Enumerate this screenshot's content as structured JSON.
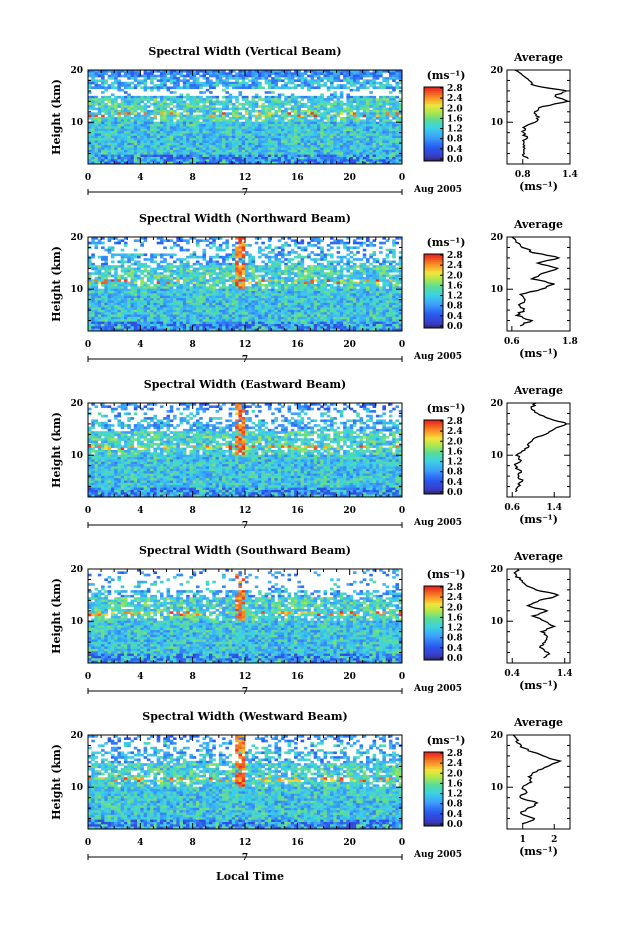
{
  "figure": {
    "xlabel_bottom": "Local Time",
    "colorbar_unit": "(ms⁻¹)",
    "avg_title": "Average",
    "avg_unit": "(ms⁻¹)",
    "ylabel": "Height (km)",
    "x_ticks": [
      "0",
      "4",
      "8",
      "12",
      "16",
      "20",
      "0"
    ],
    "date_label": "Aug 2005",
    "day_label": "7",
    "colorbar_ticks": [
      "0.0",
      "0.4",
      "0.8",
      "1.2",
      "1.6",
      "2.0",
      "2.4",
      "2.8"
    ]
  },
  "chart_data": [
    {
      "type": "heatmap",
      "title": "Spectral Width (Vertical Beam)",
      "xlabel": "Local Time",
      "ylabel": "Height (km)",
      "xlim": [
        0,
        24
      ],
      "ylim": [
        2,
        20
      ],
      "y_ticks": [
        "10",
        "20"
      ],
      "colorbar_range": [
        0.0,
        2.8
      ],
      "average_profile": {
        "xlim": [
          0.6,
          1.4
        ],
        "x_ticks": [
          "0.8",
          "1.4"
        ],
        "heights": [
          3,
          4,
          5,
          6,
          7,
          8,
          9,
          10,
          11,
          12,
          13,
          14,
          15,
          16,
          17,
          18,
          19,
          20
        ],
        "values": [
          0.85,
          0.8,
          0.82,
          0.8,
          0.85,
          0.8,
          0.82,
          0.95,
          1.0,
          0.95,
          1.05,
          1.38,
          1.2,
          1.35,
          0.95,
          0.88,
          0.8,
          0.7
        ]
      }
    },
    {
      "type": "heatmap",
      "title": "Spectral Width (Northward Beam)",
      "xlabel": "Local Time",
      "ylabel": "Height (km)",
      "xlim": [
        0,
        24
      ],
      "ylim": [
        2,
        20
      ],
      "y_ticks": [
        "10",
        "20"
      ],
      "colorbar_range": [
        0.0,
        2.8
      ],
      "average_profile": {
        "xlim": [
          0.5,
          1.8
        ],
        "x_ticks": [
          "0.6",
          "1.8"
        ],
        "heights": [
          3,
          4,
          5,
          6,
          7,
          8,
          9,
          10,
          11,
          12,
          13,
          14,
          15,
          16,
          17,
          18,
          19,
          20
        ],
        "values": [
          0.75,
          1.0,
          0.7,
          0.85,
          0.75,
          0.9,
          0.8,
          1.2,
          1.5,
          1.0,
          1.25,
          1.55,
          1.1,
          1.6,
          1.05,
          0.85,
          0.7,
          0.6
        ]
      }
    },
    {
      "type": "heatmap",
      "title": "Spectral Width (Eastward Beam)",
      "xlabel": "Local Time",
      "ylabel": "Height (km)",
      "xlim": [
        0,
        24
      ],
      "ylim": [
        2,
        20
      ],
      "y_ticks": [
        "10",
        "20"
      ],
      "colorbar_range": [
        0.0,
        2.8
      ],
      "average_profile": {
        "xlim": [
          0.5,
          1.7
        ],
        "x_ticks": [
          "0.6",
          "1.4"
        ],
        "heights": [
          3,
          4,
          5,
          6,
          7,
          8,
          9,
          10,
          11,
          12,
          13,
          14,
          15,
          16,
          17,
          18,
          19,
          20
        ],
        "values": [
          0.65,
          0.7,
          0.8,
          0.7,
          0.75,
          0.65,
          0.75,
          0.7,
          0.85,
          0.9,
          1.0,
          1.2,
          1.4,
          1.65,
          1.3,
          1.1,
          0.95,
          1.05
        ]
      }
    },
    {
      "type": "heatmap",
      "title": "Spectral Width (Southward Beam)",
      "xlabel": "Local Time",
      "ylabel": "Height (km)",
      "xlim": [
        0,
        24
      ],
      "ylim": [
        2,
        20
      ],
      "y_ticks": [
        "10",
        "20"
      ],
      "colorbar_range": [
        0.0,
        2.8
      ],
      "average_profile": {
        "xlim": [
          0.3,
          1.5
        ],
        "x_ticks": [
          "0.4",
          "1.4"
        ],
        "heights": [
          3,
          4,
          5,
          6,
          7,
          8,
          9,
          10,
          11,
          12,
          13,
          14,
          15,
          16,
          17,
          18,
          19,
          20
        ],
        "values": [
          1.0,
          1.1,
          0.9,
          1.05,
          1.1,
          0.95,
          1.2,
          1.0,
          0.8,
          1.05,
          0.7,
          0.95,
          1.3,
          0.85,
          0.65,
          0.55,
          0.45,
          0.5
        ]
      }
    },
    {
      "type": "heatmap",
      "title": "Spectral Width (Westward Beam)",
      "xlabel": "Local Time",
      "ylabel": "Height (km)",
      "xlim": [
        0,
        24
      ],
      "ylim": [
        2,
        20
      ],
      "y_ticks": [
        "10",
        "20"
      ],
      "colorbar_range": [
        0.0,
        2.8
      ],
      "average_profile": {
        "xlim": [
          0.5,
          2.5
        ],
        "x_ticks": [
          "1",
          "2"
        ],
        "heights": [
          3,
          4,
          5,
          6,
          7,
          8,
          9,
          10,
          11,
          12,
          13,
          14,
          15,
          16,
          17,
          18,
          19,
          20
        ],
        "values": [
          1.0,
          1.4,
          0.9,
          1.2,
          1.5,
          0.9,
          1.1,
          1.0,
          1.3,
          1.2,
          1.4,
          1.8,
          2.2,
          1.6,
          1.2,
          0.9,
          0.8,
          0.7
        ]
      }
    }
  ]
}
